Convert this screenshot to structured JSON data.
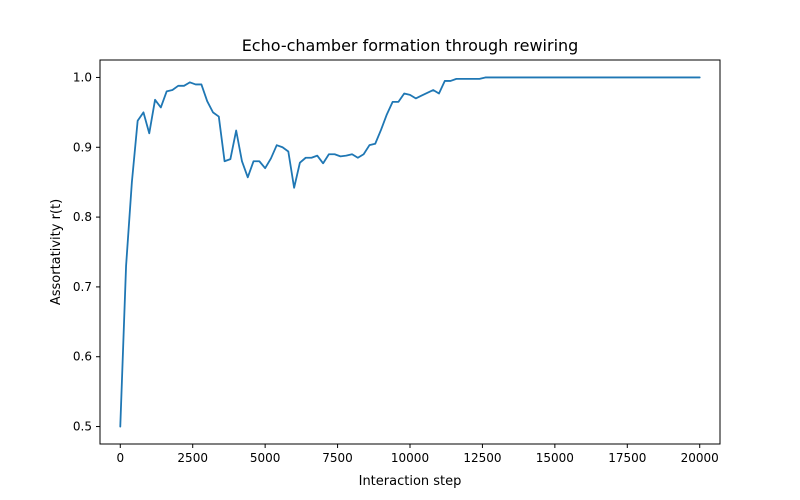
{
  "chart_data": {
    "type": "line",
    "title": "Echo-chamber formation through rewiring",
    "xlabel": "Interaction step",
    "ylabel": "Assortativity r(t)",
    "xlim": [
      -700,
      20700
    ],
    "ylim": [
      0.475,
      1.025
    ],
    "xticks": [
      0,
      2500,
      5000,
      7500,
      10000,
      12500,
      15000,
      17500,
      20000
    ],
    "xtick_labels": [
      "0",
      "2500",
      "5000",
      "7500",
      "10000",
      "12500",
      "15000",
      "17500",
      "20000"
    ],
    "yticks": [
      0.5,
      0.6,
      0.7,
      0.8,
      0.9,
      1.0
    ],
    "ytick_labels": [
      "0.5",
      "0.6",
      "0.7",
      "0.8",
      "0.9",
      "1.0"
    ],
    "grid": false,
    "series": [
      {
        "color": "#1f77b4",
        "x": [
          0,
          200,
          400,
          600,
          800,
          1000,
          1200,
          1400,
          1600,
          1800,
          2000,
          2200,
          2400,
          2600,
          2800,
          3000,
          3200,
          3400,
          3600,
          3800,
          4000,
          4200,
          4400,
          4600,
          4800,
          5000,
          5200,
          5400,
          5600,
          5800,
          6000,
          6200,
          6400,
          6600,
          6800,
          7000,
          7200,
          7400,
          7600,
          7800,
          8000,
          8200,
          8400,
          8600,
          8800,
          9000,
          9200,
          9400,
          9600,
          9800,
          10000,
          10200,
          10400,
          10600,
          10800,
          11000,
          11200,
          11400,
          11600,
          11800,
          12000,
          12200,
          12400,
          12600,
          13000,
          14000,
          15000,
          16000,
          17000,
          18000,
          19000,
          20000
        ],
        "y": [
          0.5,
          0.73,
          0.85,
          0.938,
          0.95,
          0.92,
          0.968,
          0.957,
          0.98,
          0.982,
          0.988,
          0.988,
          0.993,
          0.99,
          0.99,
          0.966,
          0.95,
          0.944,
          0.88,
          0.883,
          0.924,
          0.88,
          0.857,
          0.88,
          0.88,
          0.87,
          0.884,
          0.903,
          0.9,
          0.894,
          0.842,
          0.878,
          0.885,
          0.885,
          0.888,
          0.877,
          0.89,
          0.89,
          0.887,
          0.888,
          0.89,
          0.885,
          0.89,
          0.903,
          0.905,
          0.925,
          0.947,
          0.965,
          0.965,
          0.977,
          0.975,
          0.97,
          0.974,
          0.978,
          0.982,
          0.977,
          0.995,
          0.995,
          0.998,
          0.998,
          0.998,
          0.998,
          0.998,
          1.0,
          1.0,
          1.0,
          1.0,
          1.0,
          1.0,
          1.0,
          1.0,
          1.0
        ]
      }
    ]
  }
}
